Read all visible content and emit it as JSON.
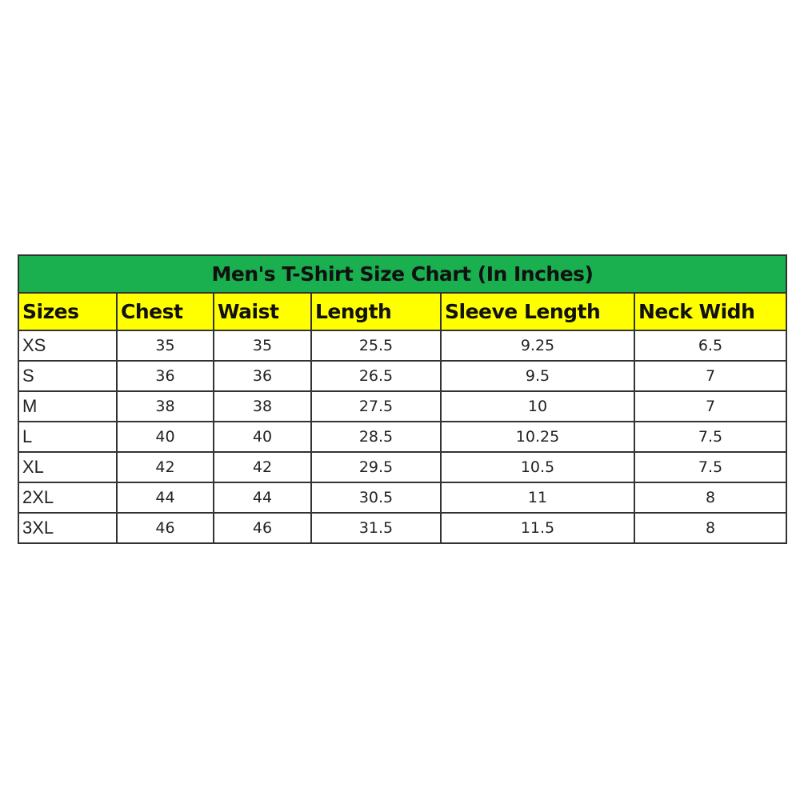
{
  "title": "Men's T-Shirt Size Chart (In Inches)",
  "colors": {
    "title_bg": "#1aaf4f",
    "header_bg": "#ffff00"
  },
  "headers": [
    "Sizes",
    "Chest",
    "Waist",
    "Length",
    "Sleeve Length",
    "Neck Widh"
  ],
  "rows": [
    [
      "XS",
      "35",
      "35",
      "25.5",
      "9.25",
      "6.5"
    ],
    [
      "S",
      "36",
      "36",
      "26.5",
      "9.5",
      "7"
    ],
    [
      "M",
      "38",
      "38",
      "27.5",
      "10",
      "7"
    ],
    [
      "L",
      "40",
      "40",
      "28.5",
      "10.25",
      "7.5"
    ],
    [
      "XL",
      "42",
      "42",
      "29.5",
      "10.5",
      "7.5"
    ],
    [
      "2XL",
      "44",
      "44",
      "30.5",
      "11",
      "8"
    ],
    [
      "3XL",
      "46",
      "46",
      "31.5",
      "11.5",
      "8"
    ]
  ]
}
